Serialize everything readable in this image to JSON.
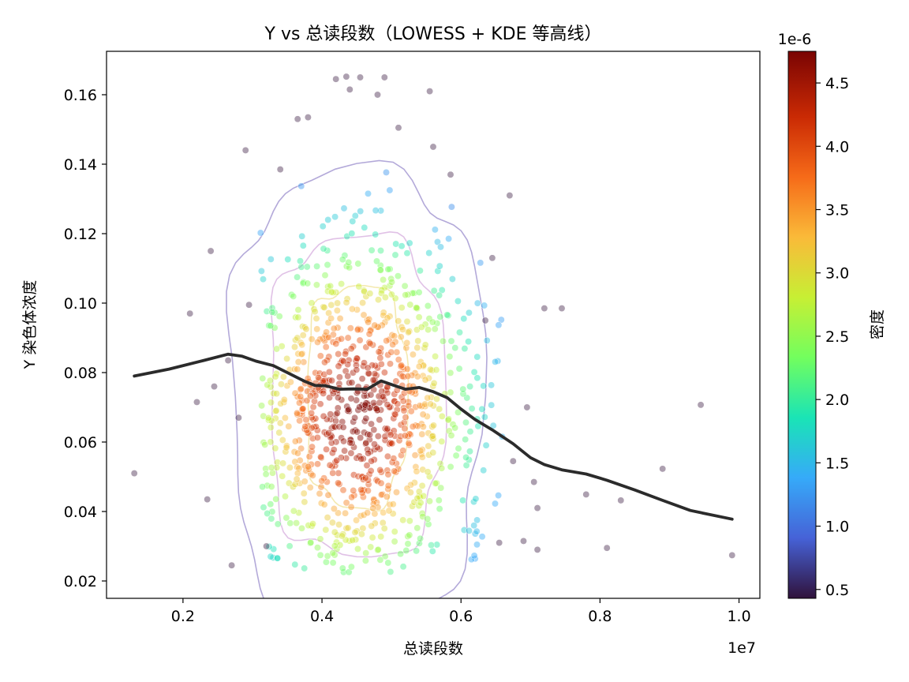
{
  "chart_data": {
    "type": "scatter",
    "title": "Y vs 总读段数（LOWESS + KDE 等高线）",
    "xlabel": "总读段数",
    "ylabel": "Y 染色体浓度",
    "x_offset_label": "1e7",
    "xlim": [
      900000,
      10300000
    ],
    "ylim": [
      0.015,
      0.1725
    ],
    "xticks": [
      2000000,
      4000000,
      6000000,
      8000000,
      10000000
    ],
    "xtick_labels": [
      "0.2",
      "0.4",
      "0.6",
      "0.8",
      "1.0"
    ],
    "yticks": [
      0.02,
      0.04,
      0.06,
      0.08,
      0.1,
      0.12,
      0.14,
      0.16
    ],
    "ytick_labels": [
      "0.02",
      "0.04",
      "0.06",
      "0.08",
      "0.10",
      "0.12",
      "0.14",
      "0.16"
    ],
    "grid": false,
    "colorbar": {
      "label": "密度",
      "offset_label": "1e-6",
      "range": [
        4.3e-07,
        4.75e-06
      ],
      "ticks": [
        5e-07,
        1e-06,
        1.5e-06,
        2e-06,
        2.5e-06,
        3e-06,
        3.5e-06,
        4e-06,
        4.5e-06
      ],
      "tick_labels": [
        "0.5",
        "1.0",
        "1.5",
        "2.0",
        "2.5",
        "3.0",
        "3.5",
        "4.0",
        "4.5"
      ],
      "colormap": [
        "#30123b",
        "#4662d7",
        "#36aaf9",
        "#1ae4b6",
        "#72fe5e",
        "#c7ef34",
        "#faba39",
        "#f66b19",
        "#ca2a04",
        "#7a0403"
      ]
    },
    "density_center": {
      "x": 4500000,
      "y": 0.068
    },
    "density_spread": {
      "x": 1000000,
      "y": 0.025
    },
    "lowess": {
      "name": "LOWESS",
      "color": "#2b2b2b",
      "x": [
        1300000,
        1800000,
        2300000,
        2650000,
        2850000,
        3050000,
        3300000,
        3550000,
        3750000,
        3900000,
        4050000,
        4250000,
        4450000,
        4650000,
        4850000,
        5050000,
        5200000,
        5400000,
        5600000,
        5800000,
        6000000,
        6200000,
        6450000,
        6750000,
        7000000,
        7200000,
        7450000,
        7800000,
        8100000,
        8500000,
        8900000,
        9300000,
        9900000
      ],
      "y": [
        0.079,
        0.081,
        0.0835,
        0.0853,
        0.0847,
        0.0833,
        0.082,
        0.0795,
        0.0775,
        0.0763,
        0.0762,
        0.0752,
        0.0753,
        0.0752,
        0.0776,
        0.0762,
        0.0752,
        0.0757,
        0.0745,
        0.0728,
        0.0695,
        0.0665,
        0.0635,
        0.0595,
        0.0555,
        0.0535,
        0.052,
        0.0508,
        0.049,
        0.0462,
        0.0432,
        0.0403,
        0.0378
      ]
    },
    "kde_contours": [
      {
        "level": "outer",
        "color": "#9a8ccc"
      },
      {
        "level": "middle",
        "color": "#cfa0d8"
      },
      {
        "level": "inner",
        "color": "#f3e7a6"
      }
    ],
    "outliers": {
      "x": [
        1300000,
        2100000,
        2200000,
        2400000,
        2450000,
        2700000,
        2900000,
        3400000,
        3650000,
        3800000,
        4200000,
        4350000,
        4400000,
        4550000,
        4800000,
        4900000,
        5100000,
        5550000,
        5600000,
        5850000,
        6350000,
        6450000,
        6550000,
        6750000,
        6950000,
        7100000,
        7200000,
        7450000,
        7800000,
        8100000,
        8300000,
        8900000,
        9450000,
        9900000,
        2650000,
        2800000,
        3200000,
        7050000,
        6900000,
        7100000,
        6700000,
        2950000,
        2350000
      ],
      "y": [
        0.051,
        0.097,
        0.0715,
        0.115,
        0.076,
        0.0245,
        0.144,
        0.1385,
        0.153,
        0.1535,
        0.1645,
        0.1652,
        0.1615,
        0.165,
        0.16,
        0.165,
        0.1505,
        0.161,
        0.145,
        0.137,
        0.095,
        0.113,
        0.031,
        0.0545,
        0.07,
        0.029,
        0.0985,
        0.0985,
        0.0449,
        0.0295,
        0.0432,
        0.0523,
        0.0707,
        0.0274,
        0.0835,
        0.067,
        0.03,
        0.0485,
        0.0315,
        0.041,
        0.131,
        0.0995,
        0.0435
      ]
    }
  }
}
